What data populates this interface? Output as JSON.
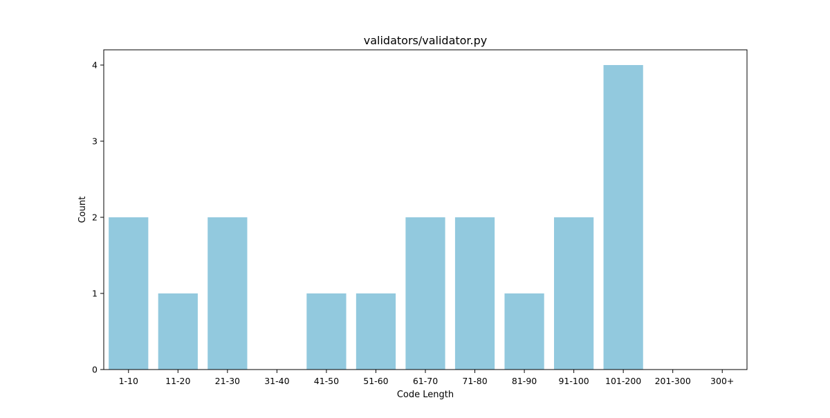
{
  "chart_data": {
    "type": "bar",
    "title": "validators/validator.py",
    "xlabel": "Code Length",
    "ylabel": "Count",
    "categories": [
      "1-10",
      "11-20",
      "21-30",
      "31-40",
      "41-50",
      "51-60",
      "61-70",
      "71-80",
      "81-90",
      "91-100",
      "101-200",
      "201-300",
      "300+"
    ],
    "values": [
      2,
      1,
      2,
      0,
      1,
      1,
      2,
      2,
      1,
      2,
      4,
      0,
      0
    ],
    "ylim": [
      0,
      4.2
    ],
    "yticks": [
      0,
      1,
      2,
      3,
      4
    ],
    "bar_color": "#92c9de",
    "grid": false,
    "legend": "none"
  }
}
